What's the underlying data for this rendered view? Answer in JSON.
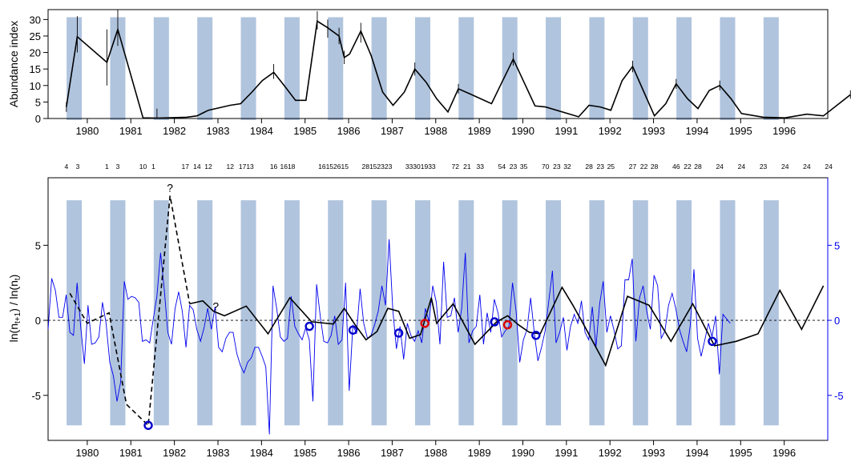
{
  "colors": {
    "band": "#b0c4de",
    "ratio_line": "#0000ee",
    "ln_line": "#000000",
    "marker_blue": "#0000cc",
    "marker_red": "#dd0000",
    "axis": "#000000"
  },
  "year_labels": [
    "1980",
    "1981",
    "1982",
    "1983",
    "1984",
    "1985",
    "1986",
    "1987",
    "1988",
    "1989",
    "1990",
    "1991",
    "1992",
    "1993",
    "1994",
    "1995",
    "1996"
  ],
  "chart_data": [
    {
      "type": "line",
      "ylabel": "Abundance index",
      "ylim": [
        0,
        33
      ],
      "yticks": [
        0,
        5,
        10,
        15,
        20,
        25,
        30
      ],
      "xlim": [
        1979.2,
        1997.1
      ],
      "grid": false,
      "bands": [
        1979.8,
        1980.8,
        1981.8,
        1982.8,
        1983.8,
        1984.8,
        1985.8,
        1986.8,
        1987.8,
        1988.8,
        1989.8,
        1990.8,
        1991.8,
        1992.8,
        1993.8,
        1994.8,
        1995.8
      ],
      "points": [
        [
          1979.62,
          3.5
        ],
        [
          1979.87,
          24.8
        ],
        [
          1980.55,
          17.0
        ],
        [
          1980.8,
          27.0
        ],
        [
          1981.38,
          0.2
        ],
        [
          1981.7,
          0.1
        ],
        [
          1982.38,
          0.4
        ],
        [
          1982.62,
          0.8
        ],
        [
          1982.88,
          2.5
        ],
        [
          1983.38,
          4.0
        ],
        [
          1983.62,
          4.5
        ],
        [
          1983.88,
          8.0
        ],
        [
          1984.12,
          11.5
        ],
        [
          1984.38,
          14.0
        ],
        [
          1984.62,
          10.0
        ],
        [
          1984.88,
          5.5
        ],
        [
          1985.12,
          5.5
        ],
        [
          1985.38,
          29.5
        ],
        [
          1985.62,
          27.5
        ],
        [
          1985.88,
          25.0
        ],
        [
          1986.0,
          18.5
        ],
        [
          1986.12,
          19.5
        ],
        [
          1986.38,
          26.5
        ],
        [
          1986.62,
          19.0
        ],
        [
          1986.88,
          8.0
        ],
        [
          1987.12,
          4.0
        ],
        [
          1987.38,
          8.0
        ],
        [
          1987.62,
          15.0
        ],
        [
          1987.88,
          11.0
        ],
        [
          1988.12,
          6.0
        ],
        [
          1988.38,
          2.0
        ],
        [
          1988.62,
          9.0
        ],
        [
          1988.88,
          7.5
        ],
        [
          1989.38,
          4.5
        ],
        [
          1989.62,
          11.0
        ],
        [
          1989.88,
          18.0
        ],
        [
          1990.38,
          3.8
        ],
        [
          1990.62,
          3.5
        ],
        [
          1991.38,
          0.5
        ],
        [
          1991.62,
          4.0
        ],
        [
          1991.88,
          3.5
        ],
        [
          1992.12,
          2.5
        ],
        [
          1992.38,
          11.5
        ],
        [
          1992.62,
          15.8
        ],
        [
          1992.88,
          8.0
        ],
        [
          1993.12,
          0.8
        ],
        [
          1993.38,
          4.5
        ],
        [
          1993.62,
          10.5
        ],
        [
          1993.88,
          6.0
        ],
        [
          1994.12,
          3.0
        ],
        [
          1994.38,
          8.5
        ],
        [
          1994.62,
          10.0
        ],
        [
          1994.88,
          6.0
        ],
        [
          1995.12,
          1.5
        ],
        [
          1995.62,
          0.4
        ],
        [
          1996.12,
          0.2
        ],
        [
          1996.62,
          1.3
        ],
        [
          1997.0,
          0.8
        ],
        [
          1997.62,
          7.2
        ]
      ],
      "error_bars": [
        [
          1979.62,
          2.0,
          5.0
        ],
        [
          1979.87,
          20.0,
          31.0
        ],
        [
          1980.55,
          10.0,
          27.0
        ],
        [
          1980.8,
          22.0,
          33.0
        ],
        [
          1981.7,
          0.0,
          3.0
        ],
        [
          1984.38,
          12.0,
          16.5
        ],
        [
          1985.38,
          27.0,
          32.5
        ],
        [
          1985.62,
          24.5,
          30.0
        ],
        [
          1985.88,
          22.5,
          27.5
        ],
        [
          1986.0,
          16.5,
          20.5
        ],
        [
          1986.38,
          23.0,
          29.0
        ],
        [
          1987.62,
          13.0,
          17.0
        ],
        [
          1988.62,
          7.5,
          10.5
        ],
        [
          1989.88,
          16.0,
          20.0
        ],
        [
          1992.62,
          14.0,
          17.5
        ],
        [
          1993.62,
          9.0,
          12.0
        ],
        [
          1994.62,
          8.5,
          11.5
        ],
        [
          1997.62,
          6.0,
          8.5
        ]
      ]
    },
    {
      "type": "line",
      "ylabel": "ln(n_{t+1}) / ln(n_t)",
      "ylabel_parts": [
        "ln(n",
        "t+1",
        ") / ln(n",
        "t",
        ")"
      ],
      "ylim": [
        -8,
        9.5
      ],
      "yticks": [
        -5,
        0,
        5
      ],
      "right_yticks": [
        "5",
        "0",
        "-5"
      ],
      "xlim": [
        1979.2,
        1997.1
      ],
      "reference_line": 0,
      "bands": [
        1979.8,
        1980.8,
        1981.8,
        1982.8,
        1983.8,
        1984.8,
        1985.8,
        1986.8,
        1987.8,
        1988.8,
        1989.8,
        1990.8,
        1991.8,
        1992.8,
        1993.8,
        1994.8,
        1995.8
      ],
      "band_range": [
        -7,
        8
      ],
      "top_counts": [
        [
          1979.62,
          "4"
        ],
        [
          1979.88,
          "3"
        ],
        [
          1980.55,
          "1"
        ],
        [
          1980.8,
          "3"
        ],
        [
          1981.38,
          "10"
        ],
        [
          1981.62,
          "1"
        ],
        [
          1982.35,
          "17"
        ],
        [
          1982.62,
          "14"
        ],
        [
          1982.88,
          "12"
        ],
        [
          1983.38,
          "12"
        ],
        [
          1983.75,
          "1713"
        ],
        [
          1984.38,
          "16"
        ],
        [
          1984.7,
          "1618"
        ],
        [
          1985.75,
          "16152615"
        ],
        [
          1986.75,
          "28152323"
        ],
        [
          1987.75,
          "33301933"
        ],
        [
          1988.55,
          "72"
        ],
        [
          1988.82,
          "21"
        ],
        [
          1989.12,
          "33"
        ],
        [
          1989.62,
          "54"
        ],
        [
          1989.88,
          "23"
        ],
        [
          1990.12,
          "35"
        ],
        [
          1990.62,
          "70"
        ],
        [
          1990.88,
          "23"
        ],
        [
          1991.12,
          "32"
        ],
        [
          1991.62,
          "28"
        ],
        [
          1991.88,
          "23"
        ],
        [
          1992.12,
          "25"
        ],
        [
          1992.62,
          "27"
        ],
        [
          1992.88,
          "22"
        ],
        [
          1993.12,
          "28"
        ],
        [
          1993.62,
          "46"
        ],
        [
          1993.88,
          "22"
        ],
        [
          1994.12,
          "28"
        ],
        [
          1994.62,
          "24"
        ],
        [
          1995.12,
          "24"
        ],
        [
          1995.62,
          "23"
        ],
        [
          1996.12,
          "24"
        ],
        [
          1996.62,
          "24"
        ],
        [
          1997.12,
          "24"
        ]
      ],
      "black_solid": [
        [
          1982.45,
          1.1
        ],
        [
          1982.75,
          1.3
        ],
        [
          1983.0,
          0.6
        ],
        [
          1983.25,
          0.3
        ],
        [
          1983.75,
          0.95
        ],
        [
          1984.25,
          -0.9
        ],
        [
          1984.75,
          1.5
        ],
        [
          1985.25,
          -0.1
        ],
        [
          1985.75,
          -0.25
        ],
        [
          1986.0,
          0.8
        ],
        [
          1986.25,
          -0.3
        ],
        [
          1986.5,
          -1.3
        ],
        [
          1986.75,
          -0.75
        ],
        [
          1987.0,
          0.8
        ],
        [
          1987.25,
          0.6
        ],
        [
          1987.5,
          -1.2
        ],
        [
          1987.75,
          -0.95
        ],
        [
          1988.0,
          1.5
        ],
        [
          1988.12,
          -0.2
        ],
        [
          1988.5,
          1.1
        ],
        [
          1989.0,
          -1.6
        ],
        [
          1989.5,
          -0.1
        ],
        [
          1989.75,
          0.3
        ],
        [
          1990.0,
          -0.3
        ],
        [
          1990.25,
          -0.8
        ],
        [
          1990.5,
          -0.9
        ],
        [
          1991.0,
          2.2
        ],
        [
          1991.25,
          1.0
        ],
        [
          1991.5,
          -0.3
        ],
        [
          1992.0,
          -3.0
        ],
        [
          1992.5,
          1.6
        ],
        [
          1993.0,
          1.0
        ],
        [
          1993.5,
          -1.4
        ],
        [
          1994.0,
          1.1
        ],
        [
          1994.5,
          -1.7
        ],
        [
          1995.0,
          -1.4
        ],
        [
          1995.5,
          -0.9
        ],
        [
          1996.0,
          2.0
        ],
        [
          1996.5,
          -0.6
        ],
        [
          1997.0,
          2.3
        ]
      ],
      "black_dashed": [
        [
          1979.7,
          1.8
        ],
        [
          1980.1,
          -0.2
        ],
        [
          1980.6,
          0.5
        ],
        [
          1981.0,
          -5.6
        ],
        [
          1981.5,
          -7.0
        ],
        [
          1982.0,
          8.3
        ],
        [
          1982.45,
          1.1
        ]
      ],
      "question_marks": [
        [
          1982.0,
          8.3
        ],
        [
          1983.05,
          0.4
        ]
      ],
      "blue_series_start": 1979.2,
      "blue_series_step": 0.0833,
      "blue_series": [
        -0.6,
        2.8,
        2.0,
        0.2,
        0.2,
        1.7,
        -0.8,
        -1.0,
        2.5,
        -0.5,
        -2.9,
        1.0,
        -1.6,
        -1.5,
        -1.1,
        1.2,
        -0.2,
        -2.8,
        -3.7,
        -5.4,
        -4.1,
        2.6,
        1.4,
        1.6,
        1.5,
        1.2,
        -1.4,
        -1.3,
        -1.5,
        0.1,
        1.6,
        4.5,
        2.1,
        -0.8,
        -1.6,
        0.8,
        1.9,
        0.6,
        -1.8,
        1.0,
        0.7,
        -0.6,
        -1.4,
        -0.5,
        0.8,
        -0.6,
        0.9,
        -1.8,
        -2.1,
        -1.2,
        -0.8,
        -0.8,
        -2.2,
        -3.0,
        -3.5,
        -2.8,
        -2.5,
        -1.8,
        -1.8,
        -2.4,
        -3.1,
        -7.6,
        2.3,
        0.8,
        -1.1,
        -1.4,
        -1.2,
        1.6,
        -0.4,
        -0.9,
        -1.3,
        -0.5,
        -1.3,
        -5.4,
        2.4,
        0.3,
        -1.4,
        -1.5,
        -1.0,
        0.3,
        -1.6,
        -1.3,
        2.5,
        -4.7,
        -0.3,
        -0.9,
        2.1,
        -0.2,
        -1.2,
        -1.0,
        -0.3,
        0.6,
        2.3,
        1.0,
        5.4,
        0.7,
        -1.9,
        -0.4,
        -2.6,
        -0.2,
        -1.0,
        -1.4,
        -0.7,
        -1.5,
        0.8,
        -0.1,
        2.3,
        1.2,
        -1.6,
        3.9,
        0.2,
        0.3,
        1.5,
        -0.8,
        0.8,
        4.5,
        -1.5,
        -0.7,
        -0.4,
        1.7,
        -1.6,
        0.5,
        -0.8,
        1.4,
        0.5,
        -1.1,
        -0.7,
        -0.4,
        2.5,
        0.6,
        -2.8,
        -1.3,
        -0.6,
        1.5,
        -0.8,
        -2.7,
        -1.8,
        -0.7,
        1.3,
        3.3,
        -1.5,
        -0.8,
        0.2,
        -2.0,
        -0.4,
        0.4,
        -0.2,
        1.3,
        -0.8,
        -1.3,
        0.9,
        -1.8,
        1.1,
        2.6,
        -0.8,
        0.3,
        -0.7,
        -1.9,
        -1.7,
        2.7,
        2.7,
        4.1,
        -1.4,
        1.5,
        2.3,
        0.6,
        -0.6,
        3.0,
        2.3,
        -1.2,
        -0.7,
        1.0,
        1.8,
        0.8,
        -0.6,
        -1.4,
        -2.1,
        -0.3,
        3.4,
        -1.2,
        -2.4,
        -1.3,
        -0.2,
        -1.1,
        0.3,
        -3.6,
        0.4,
        0.1,
        -0.2
      ],
      "blue_markers": [
        [
          1981.5,
          -7.0
        ],
        [
          1985.2,
          -0.4
        ],
        [
          1986.2,
          -0.65
        ],
        [
          1987.25,
          -0.85
        ],
        [
          1989.45,
          -0.1
        ],
        [
          1990.4,
          -1.0
        ],
        [
          1994.45,
          -1.4
        ]
      ],
      "red_markers": [
        [
          1987.85,
          -0.2
        ],
        [
          1989.75,
          -0.3
        ]
      ]
    }
  ]
}
